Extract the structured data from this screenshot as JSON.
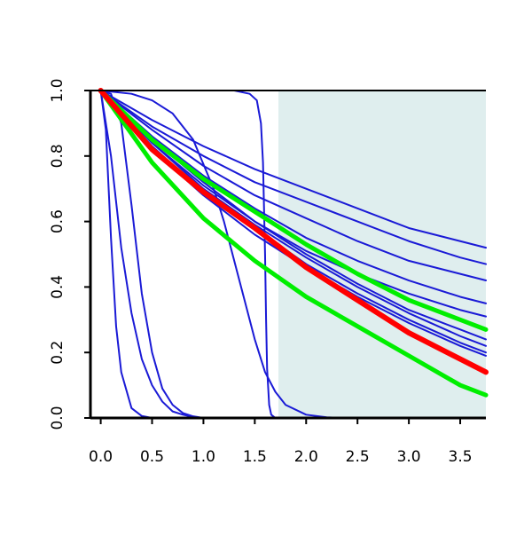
{
  "chart_data": {
    "type": "line",
    "title": "",
    "xlabel": "",
    "ylabel": "",
    "xlim": [
      -0.1,
      3.75
    ],
    "ylim": [
      0.0,
      1.0
    ],
    "x_ticks": [
      "0.0",
      "0.5",
      "1.0",
      "1.5",
      "2.0",
      "2.5",
      "3.0",
      "3.5"
    ],
    "y_ticks": [
      "0.0",
      "0.2",
      "0.4",
      "0.6",
      "0.8",
      "1.0"
    ],
    "shaded_region": {
      "x_from": 1.73,
      "x_to": 3.75,
      "color": "#dfeeee"
    },
    "colors": {
      "blue": "#1a1ad6",
      "red": "#ff0000",
      "green": "#00ee00",
      "axis": "#000000"
    },
    "series": [
      {
        "x": [
          0,
          0.05,
          0.1,
          0.15,
          0.2,
          0.3,
          0.4,
          0.5,
          0.6
        ],
        "values": [
          1.0,
          0.88,
          0.55,
          0.28,
          0.14,
          0.03,
          0.006,
          0.0,
          0.0
        ],
        "color": "blue",
        "width": 2
      },
      {
        "x": [
          0,
          0.1,
          0.2,
          0.3,
          0.4,
          0.5,
          0.6,
          0.7,
          0.8,
          0.9,
          1.0
        ],
        "values": [
          1.0,
          0.8,
          0.52,
          0.32,
          0.18,
          0.1,
          0.05,
          0.02,
          0.01,
          0.003,
          0.0
        ],
        "color": "blue",
        "width": 2
      },
      {
        "x": [
          0,
          0.1,
          0.2,
          0.3,
          0.4,
          0.5,
          0.6,
          0.7,
          0.8,
          0.9,
          1.0
        ],
        "values": [
          1.0,
          0.99,
          0.9,
          0.65,
          0.38,
          0.2,
          0.09,
          0.04,
          0.015,
          0.005,
          0.0
        ],
        "color": "blue",
        "width": 2
      },
      {
        "x": [
          0,
          0.3,
          0.5,
          0.7,
          0.9,
          1.1,
          1.2,
          1.3,
          1.4,
          1.5,
          1.6,
          1.7,
          1.8,
          2.0,
          2.2,
          2.4
        ],
        "values": [
          1.0,
          0.99,
          0.97,
          0.93,
          0.85,
          0.7,
          0.6,
          0.48,
          0.36,
          0.24,
          0.14,
          0.08,
          0.04,
          0.01,
          0.002,
          0.0
        ],
        "color": "blue",
        "width": 2
      },
      {
        "x": [
          0,
          1.0,
          1.3,
          1.45,
          1.52,
          1.56,
          1.58,
          1.6,
          1.61,
          1.62,
          1.64,
          1.66,
          1.7,
          1.8
        ],
        "values": [
          1.0,
          1.0,
          1.0,
          0.99,
          0.97,
          0.9,
          0.78,
          0.5,
          0.3,
          0.15,
          0.04,
          0.01,
          0.0,
          0.0
        ],
        "color": "blue",
        "width": 2
      },
      {
        "x": [
          0,
          0.5,
          1.0,
          1.5,
          2.0,
          2.5,
          3.0,
          3.5,
          3.75
        ],
        "values": [
          1.0,
          0.91,
          0.83,
          0.76,
          0.7,
          0.64,
          0.58,
          0.54,
          0.52
        ],
        "color": "blue",
        "width": 2
      },
      {
        "x": [
          0,
          0.5,
          1.0,
          1.5,
          2.0,
          2.5,
          3.0,
          3.5,
          3.75
        ],
        "values": [
          1.0,
          0.89,
          0.8,
          0.72,
          0.66,
          0.6,
          0.54,
          0.49,
          0.47
        ],
        "color": "blue",
        "width": 2
      },
      {
        "x": [
          0,
          0.5,
          1.0,
          1.5,
          2.0,
          2.5,
          3.0,
          3.5,
          3.75
        ],
        "values": [
          1.0,
          0.88,
          0.77,
          0.68,
          0.61,
          0.54,
          0.48,
          0.44,
          0.42
        ],
        "color": "blue",
        "width": 2
      },
      {
        "x": [
          0,
          0.5,
          1.0,
          1.5,
          2.0,
          2.5,
          3.0,
          3.5,
          3.75
        ],
        "values": [
          1.0,
          0.86,
          0.74,
          0.64,
          0.55,
          0.48,
          0.42,
          0.37,
          0.35
        ],
        "color": "blue",
        "width": 2
      },
      {
        "x": [
          0,
          0.5,
          1.0,
          1.5,
          2.0,
          2.5,
          3.0,
          3.5,
          3.75
        ],
        "values": [
          1.0,
          0.85,
          0.72,
          0.6,
          0.51,
          0.44,
          0.38,
          0.33,
          0.31
        ],
        "color": "blue",
        "width": 2
      },
      {
        "x": [
          0,
          0.5,
          1.0,
          1.5,
          2.0,
          2.5,
          3.0,
          3.5,
          3.75
        ],
        "values": [
          1.0,
          0.84,
          0.71,
          0.6,
          0.5,
          0.41,
          0.33,
          0.27,
          0.24
        ],
        "color": "blue",
        "width": 2
      },
      {
        "x": [
          0,
          0.5,
          1.0,
          1.5,
          2.0,
          2.5,
          3.0,
          3.5,
          3.75
        ],
        "values": [
          1.0,
          0.84,
          0.7,
          0.59,
          0.49,
          0.4,
          0.32,
          0.25,
          0.22
        ],
        "color": "blue",
        "width": 2
      },
      {
        "x": [
          0,
          0.5,
          1.0,
          1.5,
          2.0,
          2.5,
          3.0,
          3.5,
          3.75
        ],
        "values": [
          1.0,
          0.83,
          0.69,
          0.58,
          0.47,
          0.38,
          0.3,
          0.23,
          0.2
        ],
        "color": "blue",
        "width": 2
      },
      {
        "x": [
          0,
          0.5,
          1.0,
          1.5,
          2.0,
          2.5,
          3.0,
          3.5,
          3.75
        ],
        "values": [
          1.0,
          0.82,
          0.68,
          0.56,
          0.46,
          0.37,
          0.29,
          0.22,
          0.19
        ],
        "color": "blue",
        "width": 2
      },
      {
        "x": [
          0,
          0.5,
          1.0,
          1.5,
          2.0,
          2.5,
          3.0,
          3.5,
          3.75
        ],
        "values": [
          1.0,
          0.85,
          0.73,
          0.63,
          0.53,
          0.44,
          0.36,
          0.3,
          0.27
        ],
        "color": "green",
        "width": 5
      },
      {
        "x": [
          0,
          0.5,
          1.0,
          1.5,
          2.0,
          2.5,
          3.0,
          3.5,
          3.75
        ],
        "values": [
          1.0,
          0.78,
          0.61,
          0.48,
          0.37,
          0.28,
          0.19,
          0.1,
          0.07
        ],
        "color": "green",
        "width": 5
      },
      {
        "x": [
          0,
          0.5,
          1.0,
          1.5,
          2.0,
          2.5,
          3.0,
          3.5,
          3.75
        ],
        "values": [
          1.0,
          0.82,
          0.69,
          0.58,
          0.46,
          0.36,
          0.26,
          0.18,
          0.14
        ],
        "color": "red",
        "width": 6
      }
    ]
  }
}
